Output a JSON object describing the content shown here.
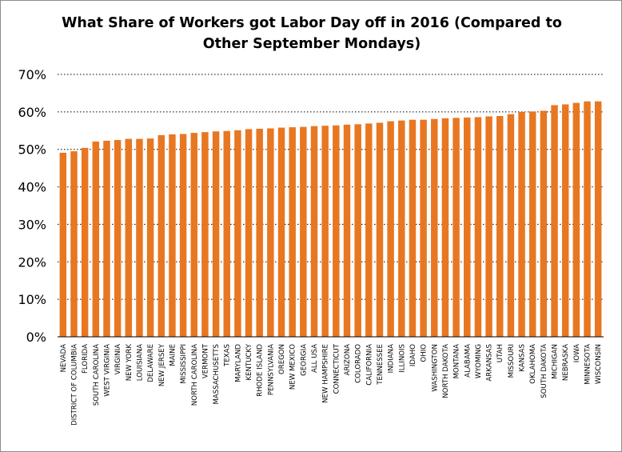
{
  "chart_data": {
    "type": "bar",
    "title": "What Share of Workers got Labor Day off in 2016 (Compared to Other September Mondays)",
    "title_lines": [
      "What Share of Workers got Labor Day off in 2016 (Compared to",
      "Other September Mondays)"
    ],
    "xlabel": "",
    "ylabel": "",
    "ylim": [
      0,
      70
    ],
    "yticks": [
      "0%",
      "10%",
      "20%",
      "30%",
      "40%",
      "50%",
      "60%",
      "70%"
    ],
    "ytick_values": [
      0,
      10,
      20,
      30,
      40,
      50,
      60,
      70
    ],
    "grid": true,
    "bar_color": "#E87722",
    "grid_color": "#000000",
    "categories": [
      "NEVADA",
      "DISTRICT OF COLUMBIA",
      "FLORIDA",
      "SOUTH CAROLINA",
      "WEST VIRGINIA",
      "VIRGINIA",
      "NEW YORK",
      "LOUISIANA",
      "DELAWARE",
      "NEW JERSEY",
      "MAINE",
      "MISSISSIPPI",
      "NORTH CAROLINA",
      "VERMONT",
      "MASSACHUSETTS",
      "TEXAS",
      "MARYLAND",
      "KENTUCKY",
      "RHODE ISLAND",
      "PENNSYLVANIA",
      "OREGON",
      "NEW MEXICO",
      "GEORGIA",
      "ALL USA",
      "NEW HAMPSHIRE",
      "CONNECTICUT",
      "ARIZONA",
      "COLORADO",
      "CALIFORNIA",
      "TENNESSEE",
      "INDIANA",
      "ILLINOIS",
      "IDAHO",
      "OHIO",
      "WASHINGTON",
      "NORTH DAKOTA",
      "MONTANA",
      "ALABAMA",
      "WYOMING",
      "ARKANSAS",
      "UTAH",
      "MISSOURI",
      "KANSAS",
      "OKLAHOMA",
      "SOUTH DAKOTA",
      "MICHIGAN",
      "NEBRASKA",
      "IOWA",
      "MINNESOTA",
      "WISCONSIN"
    ],
    "values": [
      49.1,
      49.5,
      50.4,
      52.1,
      52.3,
      52.5,
      52.8,
      52.8,
      52.9,
      53.8,
      54.0,
      54.1,
      54.4,
      54.6,
      54.8,
      54.9,
      55.1,
      55.4,
      55.5,
      55.6,
      55.8,
      55.9,
      56.0,
      56.2,
      56.3,
      56.4,
      56.6,
      56.7,
      56.9,
      57.1,
      57.5,
      57.7,
      57.9,
      57.9,
      58.1,
      58.3,
      58.4,
      58.5,
      58.6,
      58.8,
      58.9,
      59.4,
      60.0,
      60.1,
      60.3,
      61.8,
      62.0,
      62.4,
      62.8,
      62.8
    ]
  }
}
